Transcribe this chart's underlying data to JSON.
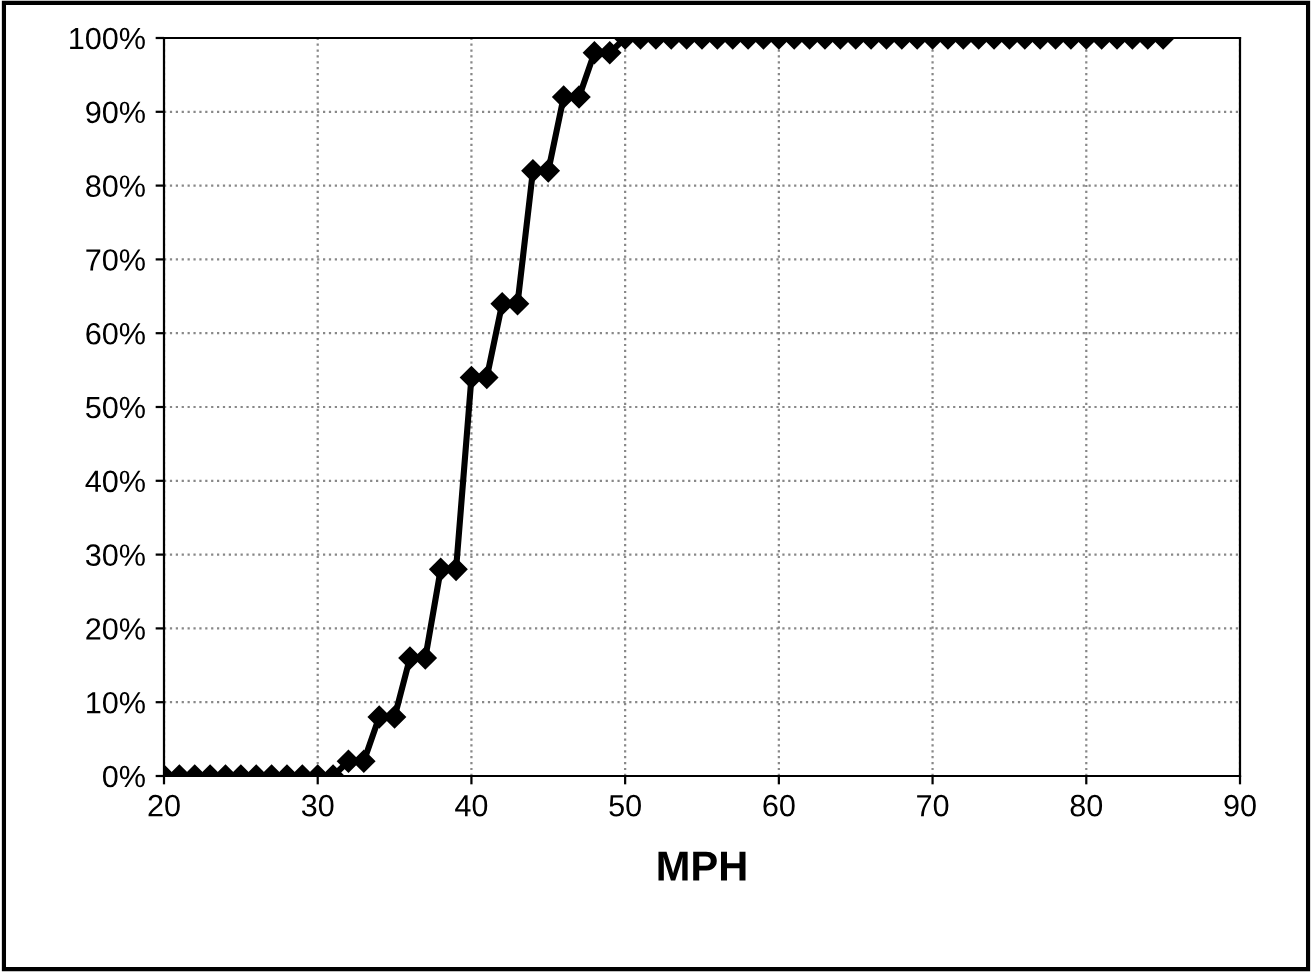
{
  "chart_data": {
    "type": "line",
    "xlabel": "MPH",
    "x": [
      20,
      21,
      22,
      23,
      24,
      25,
      26,
      27,
      28,
      29,
      30,
      31,
      32,
      33,
      34,
      35,
      36,
      37,
      38,
      39,
      40,
      41,
      42,
      43,
      44,
      45,
      46,
      47,
      48,
      49,
      50,
      51,
      52,
      53,
      54,
      55,
      56,
      57,
      58,
      59,
      60,
      61,
      62,
      63,
      64,
      65,
      66,
      67,
      68,
      69,
      70,
      71,
      72,
      73,
      74,
      75,
      76,
      77,
      78,
      79,
      80,
      81,
      82,
      83,
      84,
      85
    ],
    "series": [
      {
        "color": "#000000",
        "values": [
          0,
          0,
          0,
          0,
          0,
          0,
          0,
          0,
          0,
          0,
          0,
          0,
          2,
          2,
          8,
          8,
          16,
          16,
          28,
          28,
          54,
          54,
          64,
          64,
          82,
          82,
          92,
          92,
          98,
          98,
          100,
          100,
          100,
          100,
          100,
          100,
          100,
          100,
          100,
          100,
          100,
          100,
          100,
          100,
          100,
          100,
          100,
          100,
          100,
          100,
          100,
          100,
          100,
          100,
          100,
          100,
          100,
          100,
          100,
          100,
          100,
          100,
          100,
          100,
          100,
          100
        ]
      }
    ],
    "xlim": [
      20,
      90
    ],
    "xticks": [
      20,
      30,
      40,
      50,
      60,
      70,
      80,
      90
    ],
    "ylim": [
      0,
      100
    ],
    "yticks": [
      {
        "value": 0,
        "label": "0%"
      },
      {
        "value": 10,
        "label": "10%"
      },
      {
        "value": 20,
        "label": "20%"
      },
      {
        "value": 30,
        "label": "30%"
      },
      {
        "value": 40,
        "label": "40%"
      },
      {
        "value": 50,
        "label": "50%"
      },
      {
        "value": 60,
        "label": "60%"
      },
      {
        "value": 70,
        "label": "70%"
      },
      {
        "value": 80,
        "label": "80%"
      },
      {
        "value": 90,
        "label": "90%"
      },
      {
        "value": 100,
        "label": "100%"
      }
    ],
    "grid": true,
    "marker": "diamond",
    "line_style": "solid"
  }
}
